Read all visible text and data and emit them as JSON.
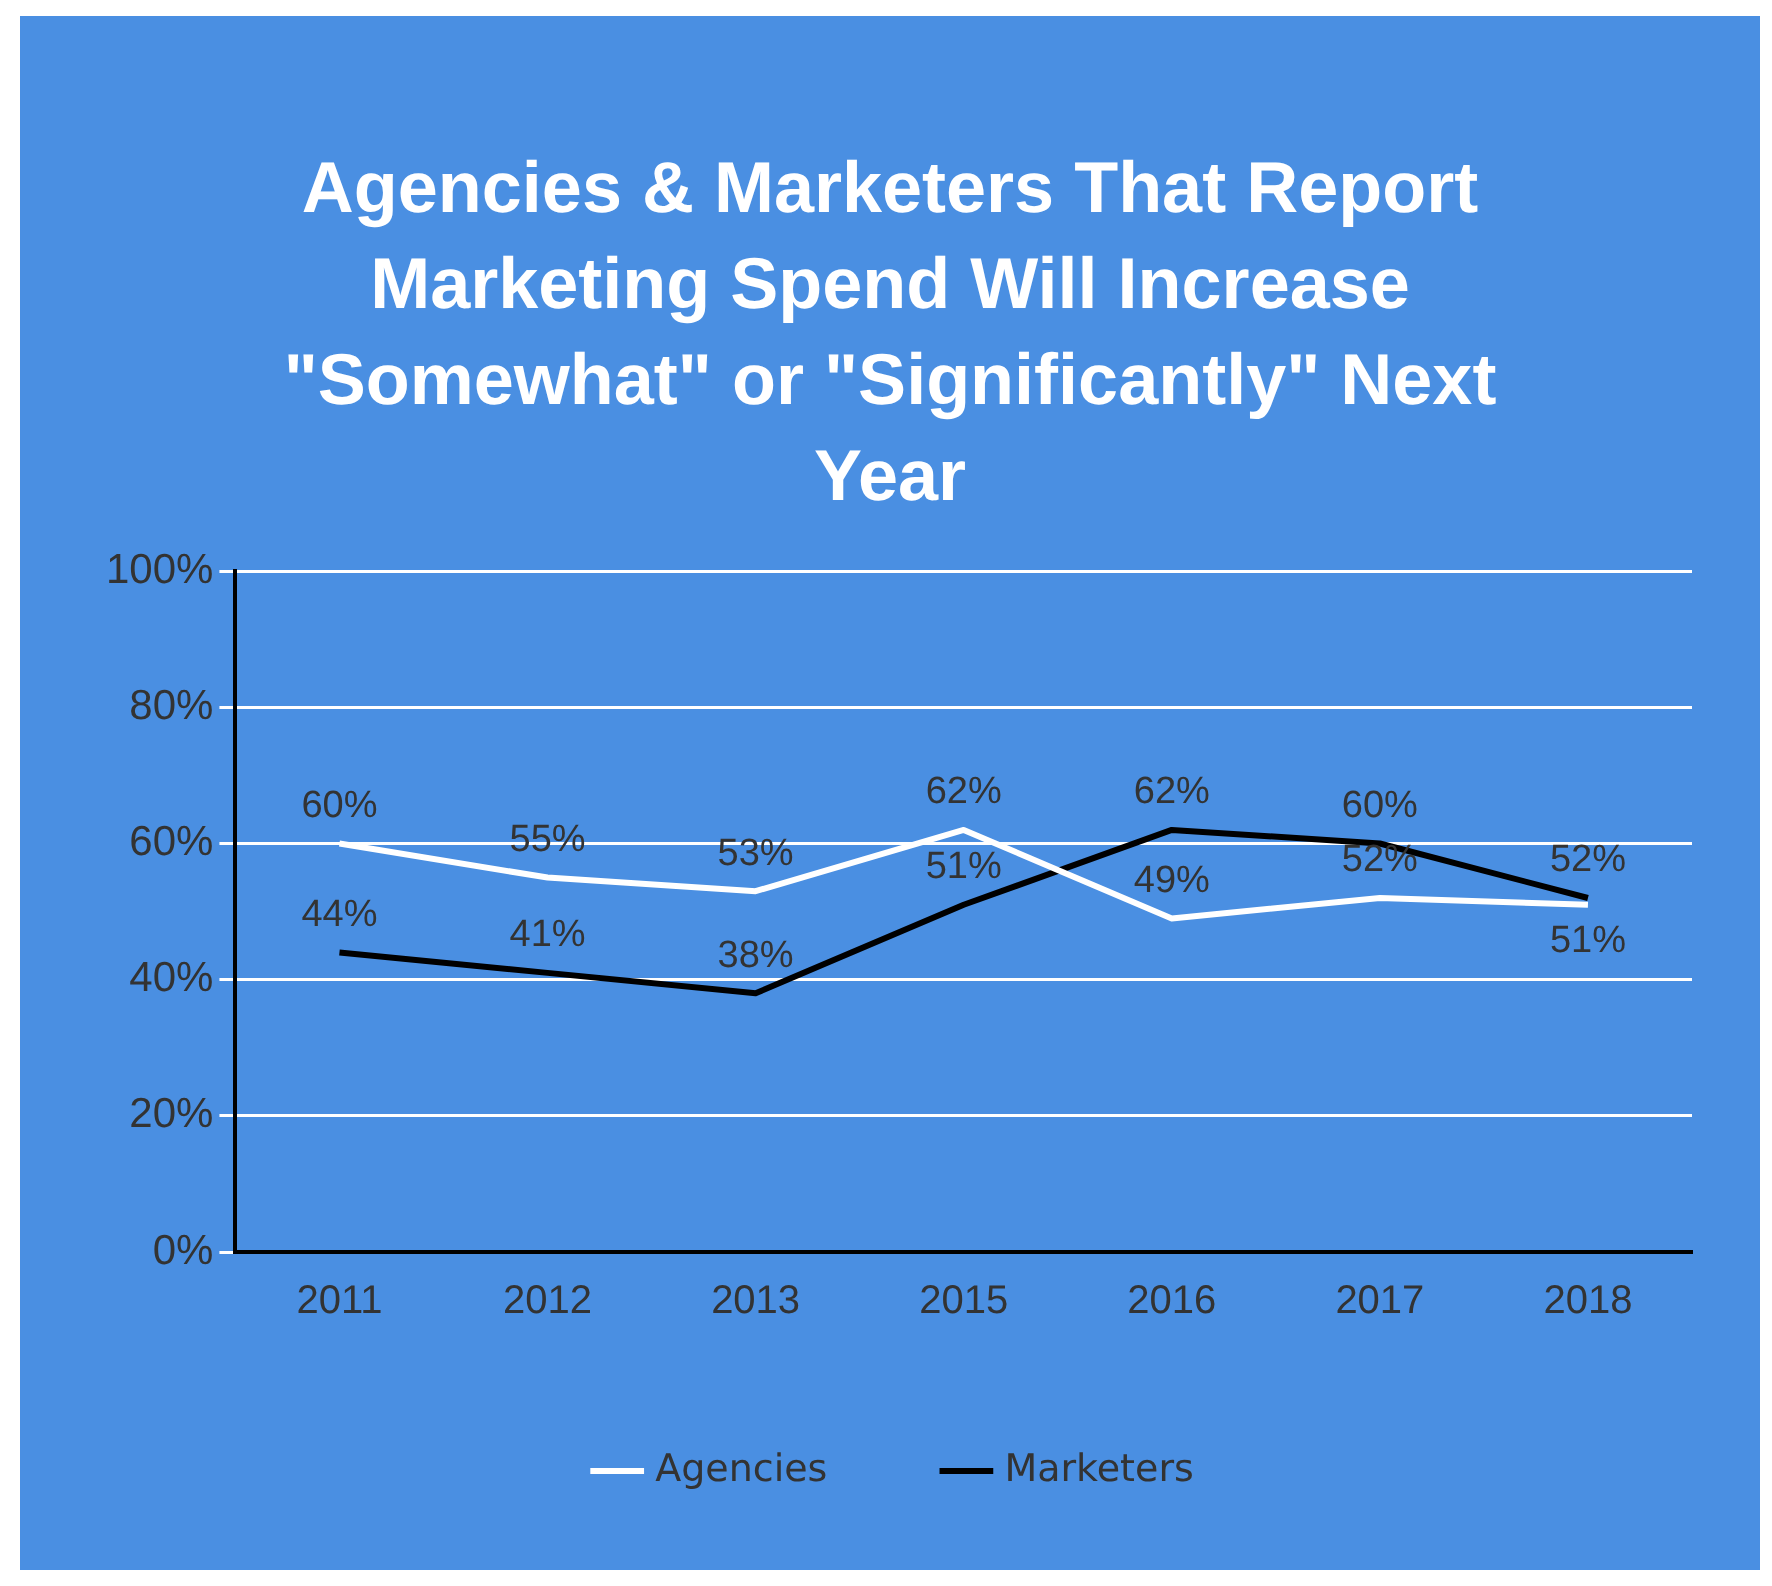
{
  "chart_data": {
    "type": "line",
    "title": "Agencies & Marketers That Report Marketing Spend Will Increase \"Somewhat\" or \"Significantly\" Next Year",
    "categories": [
      "2011",
      "2012",
      "2013",
      "2015",
      "2016",
      "2017",
      "2018"
    ],
    "series": [
      {
        "name": "Agencies",
        "color": "#ffffff",
        "values": [
          60,
          55,
          53,
          62,
          49,
          52,
          51
        ],
        "value_labels": [
          "60%",
          "55%",
          "53%",
          "62%",
          "49%",
          "52%",
          "51%"
        ]
      },
      {
        "name": "Marketers",
        "color": "#000000",
        "values": [
          44,
          41,
          38,
          51,
          62,
          60,
          52
        ],
        "value_labels": [
          "44%",
          "41%",
          "38%",
          "51%",
          "62%",
          "60%",
          "52%"
        ]
      }
    ],
    "ylim": [
      0,
      100
    ],
    "yticks": [
      {
        "value": 0,
        "label": "0%"
      },
      {
        "value": 20,
        "label": "20%"
      },
      {
        "value": 40,
        "label": "40%"
      },
      {
        "value": 60,
        "label": "60%"
      },
      {
        "value": 80,
        "label": "80%"
      },
      {
        "value": 100,
        "label": "100%"
      }
    ],
    "grid": "y",
    "legend": "bottom",
    "marker": "none",
    "line_style": "solid"
  }
}
